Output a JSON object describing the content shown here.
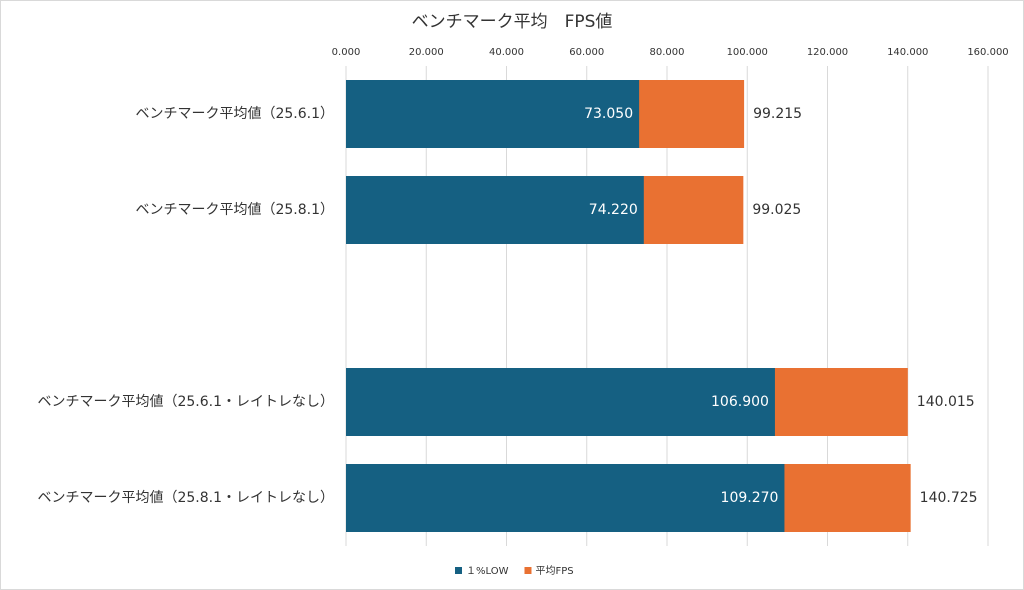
{
  "chart_data": {
    "type": "bar",
    "orientation": "horizontal",
    "title": "ベンチマーク平均　FPS値",
    "categories": [
      "ベンチマーク平均値（25.6.1）",
      "ベンチマーク平均値（25.8.1）",
      null,
      "ベンチマーク平均値（25.6.1・レイトレなし）",
      "ベンチマーク平均値（25.8.1・レイトレなし）"
    ],
    "series": [
      {
        "name": "平均FPS",
        "color": "#e97132",
        "values": [
          99.215,
          99.025,
          null,
          140.015,
          140.725
        ],
        "value_labels": [
          "99.215",
          "99.025",
          null,
          "140.015",
          "140.725"
        ]
      },
      {
        "name": "１%LOW",
        "color": "#156082",
        "values": [
          73.05,
          74.22,
          null,
          106.9,
          109.27
        ],
        "value_labels": [
          "73.050",
          "74.220",
          null,
          "106.900",
          "109.270"
        ]
      }
    ],
    "legend_order": [
      "１%LOW",
      "平均FPS"
    ],
    "xlim": [
      0,
      160
    ],
    "xticks": [
      {
        "value": 0,
        "label": "0.000"
      },
      {
        "value": 20,
        "label": "20.000"
      },
      {
        "value": 40,
        "label": "40.000"
      },
      {
        "value": 60,
        "label": "60.000"
      },
      {
        "value": 80,
        "label": "80.000"
      },
      {
        "value": 100,
        "label": "100.000"
      },
      {
        "value": 120,
        "label": "120.000"
      },
      {
        "value": 140,
        "label": "140.000"
      },
      {
        "value": 160,
        "label": "160.000"
      }
    ],
    "grid": true,
    "legend": "bottom"
  }
}
